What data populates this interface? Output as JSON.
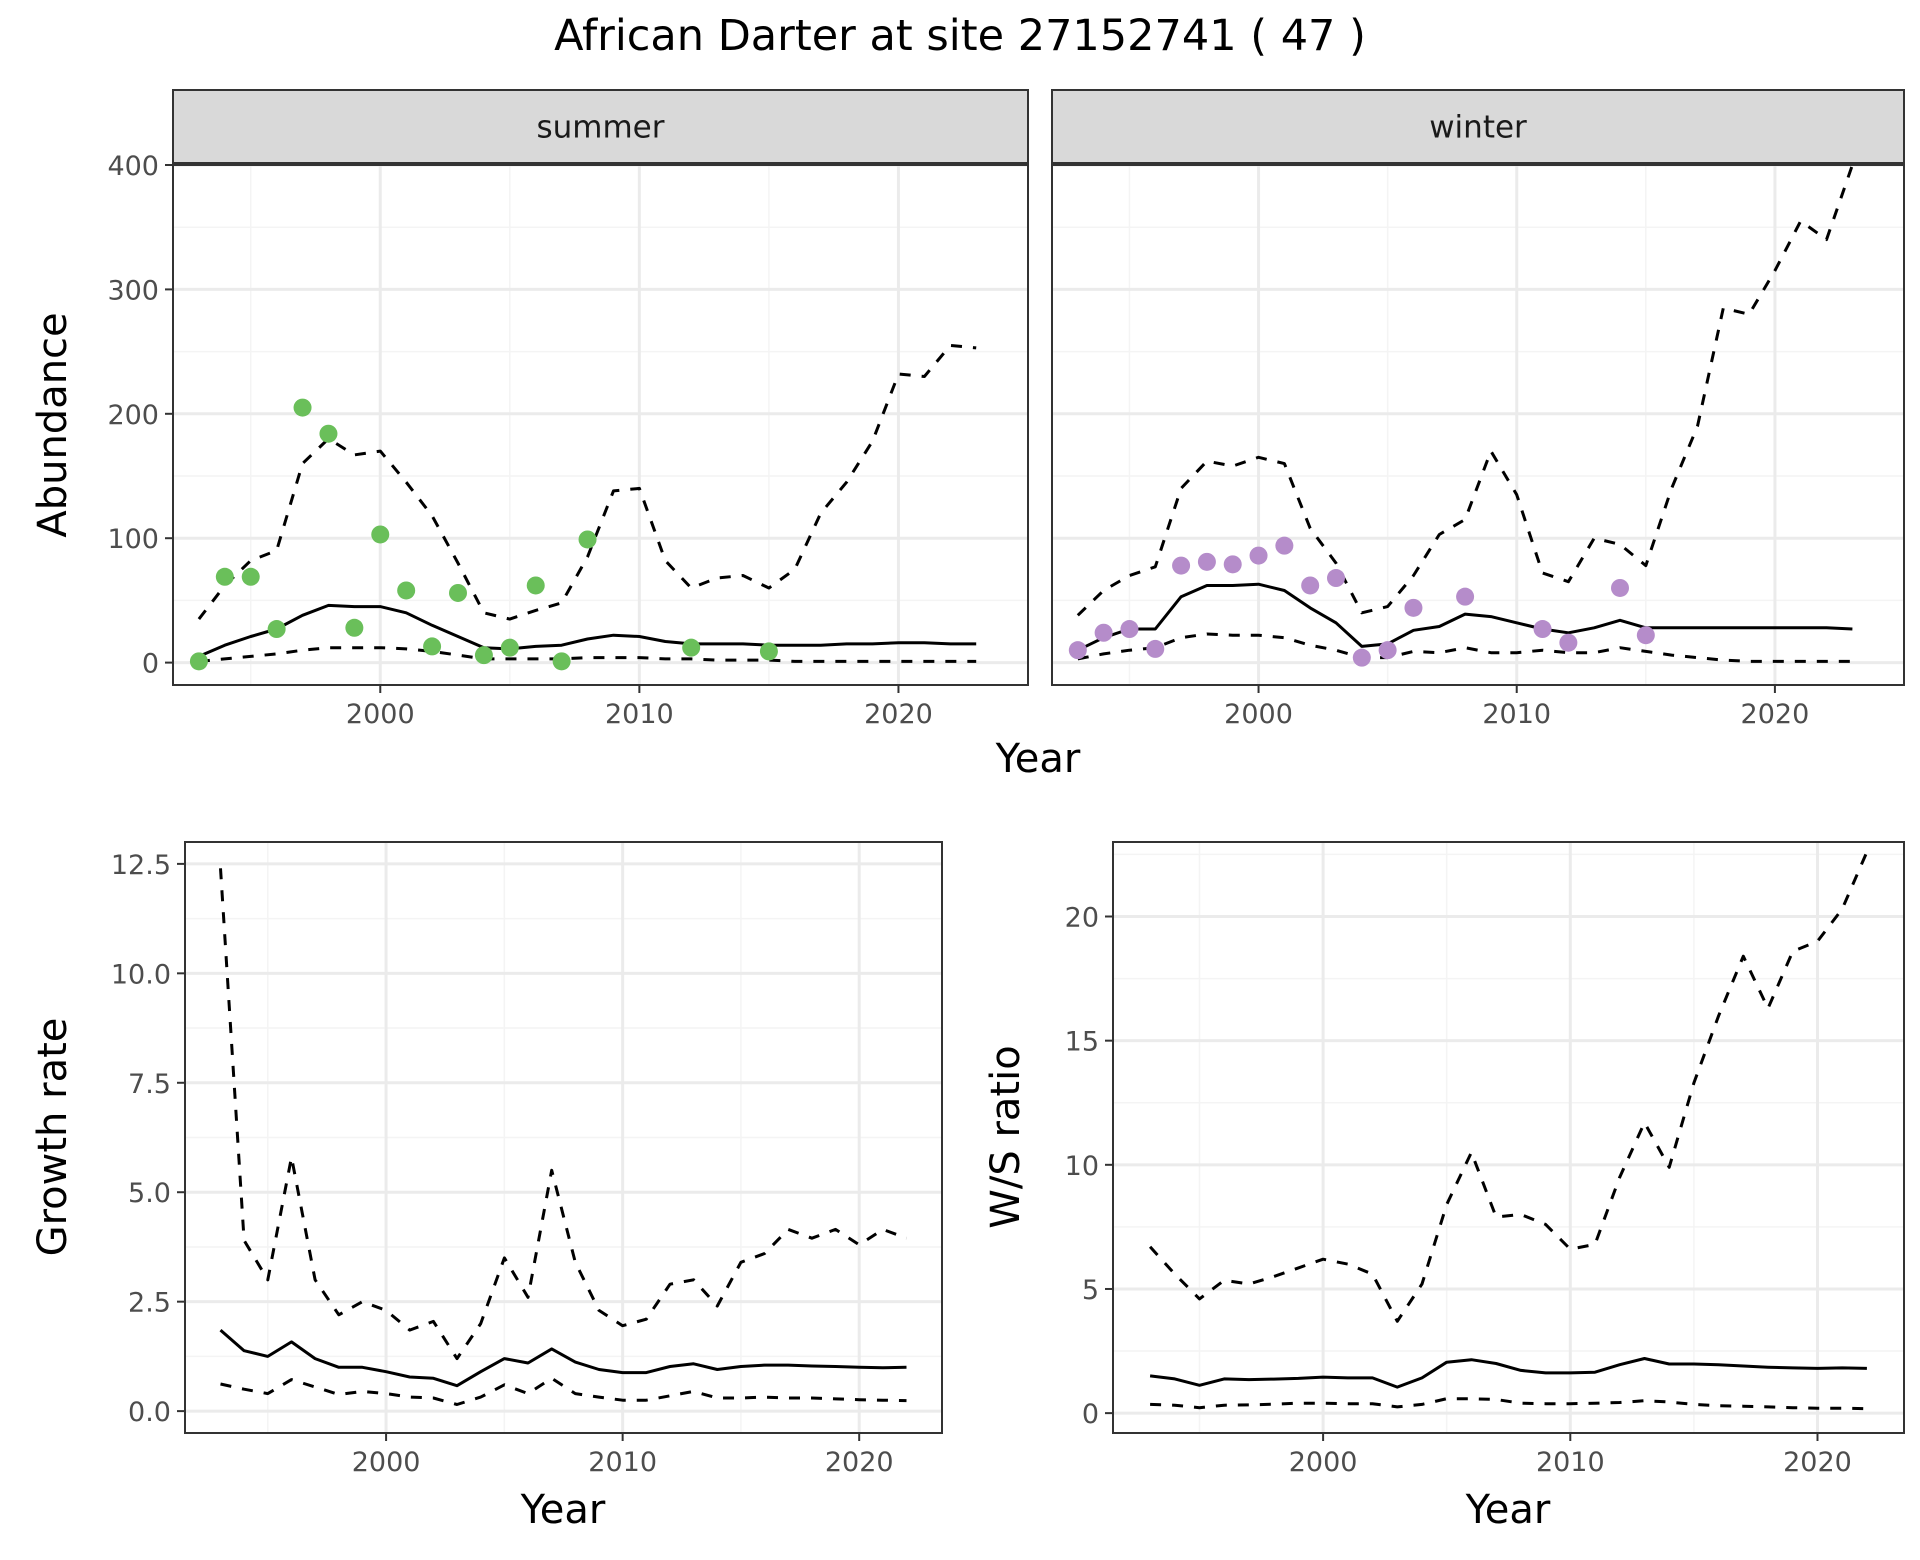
{
  "title": "African Darter at site 27152741 ( 47 )",
  "colors": {
    "summer_points": "#6abf5a",
    "winter_points": "#b58cca",
    "lines": "#000000",
    "strip_fill": "#d9d9d9",
    "grid_major": "#ebebeb",
    "grid_minor": "#f4f4f4"
  },
  "chart_data": [
    {
      "type": "line",
      "panel": "summer",
      "strip": "summer",
      "xlabel": "Year",
      "ylabel": "Abundance",
      "xlim": [
        1992,
        2025
      ],
      "ylim": [
        -18,
        400
      ],
      "xticks": [
        2000,
        2010,
        2020
      ],
      "yticks": [
        0,
        100,
        200,
        300,
        400
      ],
      "grid": true,
      "series": [
        {
          "role": "median",
          "style": "solid",
          "x": [
            1993,
            1994,
            1995,
            1996,
            1997,
            1998,
            1999,
            2000,
            2001,
            2002,
            2003,
            2004,
            2005,
            2006,
            2007,
            2008,
            2009,
            2010,
            2011,
            2012,
            2013,
            2014,
            2015,
            2016,
            2017,
            2018,
            2019,
            2020,
            2021,
            2022,
            2023
          ],
          "values": [
            5,
            14,
            21,
            27,
            38,
            46,
            45,
            45,
            40,
            30,
            21,
            12,
            11,
            13,
            14,
            19,
            22,
            21,
            17,
            15,
            15,
            15,
            14,
            14,
            14,
            15,
            15,
            16,
            16,
            15,
            15
          ]
        },
        {
          "role": "upper",
          "style": "dashed",
          "x": [
            1993,
            1994,
            1995,
            1996,
            1997,
            1998,
            1999,
            2000,
            2001,
            2002,
            2003,
            2004,
            2005,
            2006,
            2007,
            2008,
            2009,
            2010,
            2011,
            2012,
            2013,
            2014,
            2015,
            2016,
            2017,
            2018,
            2019,
            2020,
            2021,
            2022,
            2023
          ],
          "values": [
            35,
            62,
            82,
            90,
            160,
            180,
            167,
            170,
            145,
            118,
            80,
            40,
            35,
            42,
            48,
            85,
            138,
            140,
            82,
            60,
            68,
            70,
            60,
            75,
            120,
            145,
            178,
            232,
            230,
            255,
            253
          ]
        },
        {
          "role": "lower",
          "style": "dashed",
          "x": [
            1993,
            1994,
            1995,
            1996,
            1997,
            1998,
            1999,
            2000,
            2001,
            2002,
            2003,
            2004,
            2005,
            2006,
            2007,
            2008,
            2009,
            2010,
            2011,
            2012,
            2013,
            2014,
            2015,
            2016,
            2017,
            2018,
            2019,
            2020,
            2021,
            2022,
            2023
          ],
          "values": [
            1,
            3,
            5,
            7,
            10,
            12,
            12,
            12,
            11,
            9,
            6,
            3,
            3,
            3,
            3,
            4,
            4,
            4,
            3,
            3,
            2,
            2,
            2,
            1,
            1,
            1,
            1,
            1,
            1,
            1,
            1
          ]
        },
        {
          "role": "observed",
          "style": "points",
          "color": "#6abf5a",
          "x": [
            1993,
            1994,
            1995,
            1996,
            1997,
            1998,
            1999,
            2000,
            2001,
            2002,
            2003,
            2004,
            2005,
            2006,
            2007,
            2008,
            2012,
            2015
          ],
          "values": [
            1,
            69,
            69,
            27,
            205,
            184,
            28,
            103,
            58,
            13,
            56,
            6,
            12,
            62,
            1,
            99,
            12,
            9
          ]
        }
      ]
    },
    {
      "type": "line",
      "panel": "winter",
      "strip": "winter",
      "xlabel": "Year",
      "ylabel": "",
      "xlim": [
        1992,
        2025
      ],
      "ylim": [
        -18,
        400
      ],
      "xticks": [
        2000,
        2010,
        2020
      ],
      "yticks": [
        0,
        100,
        200,
        300,
        400
      ],
      "grid": true,
      "series": [
        {
          "role": "median",
          "style": "solid",
          "x": [
            1993,
            1994,
            1995,
            1996,
            1997,
            1998,
            1999,
            2000,
            2001,
            2002,
            2003,
            2004,
            2005,
            2006,
            2007,
            2008,
            2009,
            2010,
            2011,
            2012,
            2013,
            2014,
            2015,
            2016,
            2017,
            2018,
            2019,
            2020,
            2021,
            2022,
            2023
          ],
          "values": [
            10,
            20,
            27,
            27,
            53,
            62,
            62,
            63,
            58,
            44,
            32,
            13,
            15,
            26,
            29,
            39,
            37,
            32,
            27,
            24,
            28,
            34,
            28,
            28,
            28,
            28,
            28,
            28,
            28,
            28,
            27
          ]
        },
        {
          "role": "upper",
          "style": "dashed",
          "x": [
            1993,
            1994,
            1995,
            1996,
            1997,
            1998,
            1999,
            2000,
            2001,
            2002,
            2003,
            2004,
            2005,
            2006,
            2007,
            2008,
            2009,
            2010,
            2011,
            2012,
            2013,
            2014,
            2015,
            2016,
            2017,
            2018,
            2019,
            2020,
            2021,
            2022,
            2023
          ],
          "values": [
            38,
            58,
            70,
            77,
            140,
            162,
            158,
            165,
            160,
            108,
            80,
            40,
            45,
            70,
            103,
            115,
            170,
            135,
            72,
            65,
            100,
            95,
            78,
            140,
            190,
            285,
            280,
            315,
            355,
            340,
            400
          ]
        },
        {
          "role": "lower",
          "style": "dashed",
          "x": [
            1993,
            1994,
            1995,
            1996,
            1997,
            1998,
            1999,
            2000,
            2001,
            2002,
            2003,
            2004,
            2005,
            2006,
            2007,
            2008,
            2009,
            2010,
            2011,
            2012,
            2013,
            2014,
            2015,
            2016,
            2017,
            2018,
            2019,
            2020,
            2021,
            2022,
            2023
          ],
          "values": [
            3,
            7,
            10,
            12,
            20,
            23,
            22,
            22,
            20,
            14,
            10,
            4,
            4,
            9,
            8,
            12,
            8,
            8,
            10,
            8,
            8,
            12,
            9,
            6,
            4,
            2,
            1,
            1,
            1,
            1,
            1
          ]
        },
        {
          "role": "observed",
          "style": "points",
          "color": "#b58cca",
          "x": [
            1993,
            1994,
            1995,
            1996,
            1997,
            1998,
            1999,
            2000,
            2001,
            2002,
            2003,
            2004,
            2005,
            2006,
            2008,
            2011,
            2012,
            2014,
            2015
          ],
          "values": [
            10,
            24,
            27,
            11,
            78,
            81,
            79,
            86,
            94,
            62,
            68,
            4,
            10,
            44,
            53,
            27,
            16,
            60,
            22
          ]
        }
      ]
    },
    {
      "type": "line",
      "panel": "growth",
      "xlabel": "Year",
      "ylabel": "Growth rate",
      "xlim": [
        1991.5,
        2023.5
      ],
      "ylim": [
        -0.5,
        13
      ],
      "xticks": [
        2000,
        2010,
        2020
      ],
      "yticks": [
        0.0,
        2.5,
        5.0,
        7.5,
        10.0,
        12.5
      ],
      "ytick_labels": [
        "0.0",
        "2.5",
        "5.0",
        "7.5",
        "10.0",
        "12.5"
      ],
      "grid": true,
      "series": [
        {
          "role": "median",
          "style": "solid",
          "x": [
            1993,
            1994,
            1995,
            1996,
            1997,
            1998,
            1999,
            2000,
            2001,
            2002,
            2003,
            2004,
            2005,
            2006,
            2007,
            2008,
            2009,
            2010,
            2011,
            2012,
            2013,
            2014,
            2015,
            2016,
            2017,
            2018,
            2019,
            2020,
            2021,
            2022
          ],
          "values": [
            1.85,
            1.38,
            1.25,
            1.58,
            1.2,
            1.0,
            1.0,
            0.9,
            0.78,
            0.75,
            0.58,
            0.9,
            1.2,
            1.1,
            1.42,
            1.12,
            0.95,
            0.88,
            0.88,
            1.02,
            1.08,
            0.95,
            1.02,
            1.05,
            1.05,
            1.03,
            1.02,
            1.0,
            0.99,
            1.0
          ]
        },
        {
          "role": "upper",
          "style": "dashed",
          "x": [
            1993,
            1994,
            1995,
            1996,
            1997,
            1998,
            1999,
            2000,
            2001,
            2002,
            2003,
            2004,
            2005,
            2006,
            2007,
            2008,
            2009,
            2010,
            2011,
            2012,
            2013,
            2014,
            2015,
            2016,
            2017,
            2018,
            2019,
            2020,
            2021,
            2022
          ],
          "values": [
            12.4,
            3.9,
            3.0,
            5.8,
            3.0,
            2.2,
            2.5,
            2.3,
            1.85,
            2.05,
            1.2,
            2.0,
            3.5,
            2.6,
            5.5,
            3.4,
            2.3,
            1.95,
            2.1,
            2.9,
            3.0,
            2.4,
            3.4,
            3.6,
            4.15,
            3.95,
            4.15,
            3.8,
            4.15,
            3.95
          ]
        },
        {
          "role": "lower",
          "style": "dashed",
          "x": [
            1993,
            1994,
            1995,
            1996,
            1997,
            1998,
            1999,
            2000,
            2001,
            2002,
            2003,
            2004,
            2005,
            2006,
            2007,
            2008,
            2009,
            2010,
            2011,
            2012,
            2013,
            2014,
            2015,
            2016,
            2017,
            2018,
            2019,
            2020,
            2021,
            2022
          ],
          "values": [
            0.62,
            0.5,
            0.4,
            0.72,
            0.55,
            0.38,
            0.45,
            0.4,
            0.32,
            0.3,
            0.15,
            0.32,
            0.6,
            0.4,
            0.75,
            0.4,
            0.32,
            0.25,
            0.25,
            0.35,
            0.45,
            0.3,
            0.3,
            0.32,
            0.3,
            0.3,
            0.28,
            0.26,
            0.25,
            0.24
          ]
        }
      ]
    },
    {
      "type": "line",
      "panel": "ratio",
      "xlabel": "Year",
      "ylabel": "W/S ratio",
      "xlim": [
        1991.5,
        2023.5
      ],
      "ylim": [
        -0.8,
        23
      ],
      "xticks": [
        2000,
        2010,
        2020
      ],
      "yticks": [
        0,
        5,
        10,
        15,
        20
      ],
      "grid": true,
      "series": [
        {
          "role": "median",
          "style": "solid",
          "x": [
            1993,
            1994,
            1995,
            1996,
            1997,
            1998,
            1999,
            2000,
            2001,
            2002,
            2003,
            2004,
            2005,
            2006,
            2007,
            2008,
            2009,
            2010,
            2011,
            2012,
            2013,
            2014,
            2015,
            2016,
            2017,
            2018,
            2019,
            2020,
            2021,
            2022
          ],
          "values": [
            1.5,
            1.38,
            1.12,
            1.38,
            1.35,
            1.37,
            1.4,
            1.45,
            1.42,
            1.42,
            1.05,
            1.42,
            2.05,
            2.15,
            2.0,
            1.72,
            1.62,
            1.62,
            1.65,
            1.95,
            2.2,
            1.98,
            1.98,
            1.95,
            1.9,
            1.85,
            1.82,
            1.8,
            1.82,
            1.8
          ]
        },
        {
          "role": "upper",
          "style": "dashed",
          "x": [
            1993,
            1994,
            1995,
            1996,
            1997,
            1998,
            1999,
            2000,
            2001,
            2002,
            2003,
            2004,
            2005,
            2006,
            2007,
            2008,
            2009,
            2010,
            2011,
            2012,
            2013,
            2014,
            2015,
            2016,
            2017,
            2018,
            2019,
            2020,
            2021,
            2022
          ],
          "values": [
            6.7,
            5.6,
            4.6,
            5.35,
            5.2,
            5.5,
            5.85,
            6.2,
            6.0,
            5.6,
            3.7,
            5.2,
            8.4,
            10.5,
            7.9,
            8.0,
            7.6,
            6.6,
            6.8,
            9.5,
            11.7,
            9.9,
            13.3,
            16.0,
            18.4,
            16.3,
            18.6,
            19.0,
            20.3,
            22.6
          ]
        },
        {
          "role": "lower",
          "style": "dashed",
          "x": [
            1993,
            1994,
            1995,
            1996,
            1997,
            1998,
            1999,
            2000,
            2001,
            2002,
            2003,
            2004,
            2005,
            2006,
            2007,
            2008,
            2009,
            2010,
            2011,
            2012,
            2013,
            2014,
            2015,
            2016,
            2017,
            2018,
            2019,
            2020,
            2021,
            2022
          ],
          "values": [
            0.35,
            0.32,
            0.22,
            0.32,
            0.33,
            0.36,
            0.4,
            0.4,
            0.38,
            0.38,
            0.25,
            0.35,
            0.58,
            0.58,
            0.55,
            0.4,
            0.38,
            0.38,
            0.4,
            0.43,
            0.5,
            0.45,
            0.35,
            0.3,
            0.28,
            0.25,
            0.22,
            0.2,
            0.2,
            0.18
          ]
        }
      ]
    }
  ]
}
